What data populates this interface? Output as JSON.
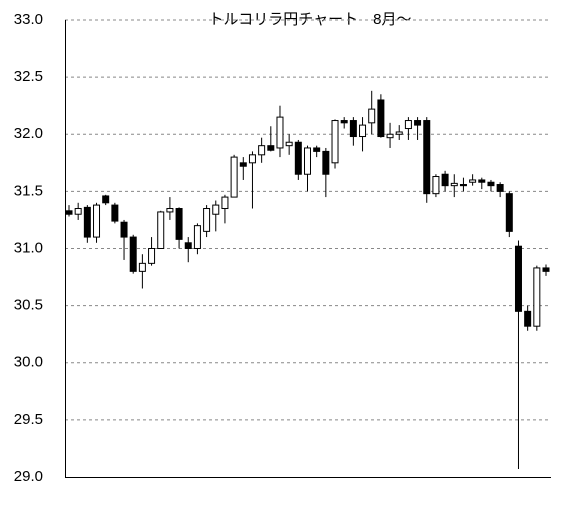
{
  "chart_data": {
    "type": "candlestick",
    "title": "トルコリラ円チャート　8月～",
    "open": [
      31.33,
      31.3,
      31.36,
      31.1,
      31.46,
      31.38,
      31.23,
      31.1,
      30.8,
      30.87,
      31.0,
      31.32,
      31.35,
      31.05,
      31.0,
      31.15,
      31.3,
      31.35,
      31.45,
      31.75,
      31.75,
      31.82,
      31.9,
      31.88,
      31.9,
      31.93,
      31.65,
      31.88,
      31.85,
      31.75,
      32.12,
      32.12,
      31.98,
      32.1,
      32.3,
      31.97,
      32.0,
      32.05,
      32.12,
      32.12,
      31.48,
      31.65,
      31.55,
      31.56,
      31.58,
      31.6,
      31.58,
      31.56,
      31.48,
      31.02,
      30.45,
      30.32,
      30.83
    ],
    "high": [
      31.38,
      31.4,
      31.38,
      31.4,
      31.47,
      31.4,
      31.25,
      31.12,
      30.95,
      31.1,
      31.33,
      31.45,
      31.36,
      31.1,
      31.22,
      31.38,
      31.42,
      31.47,
      31.82,
      31.8,
      31.85,
      31.97,
      32.07,
      32.25,
      32.0,
      31.95,
      31.9,
      31.9,
      31.88,
      32.13,
      32.15,
      32.15,
      32.15,
      32.38,
      32.35,
      32.1,
      32.08,
      32.15,
      32.15,
      32.15,
      31.65,
      31.68,
      31.65,
      31.62,
      31.65,
      31.62,
      31.6,
      31.58,
      31.5,
      31.07,
      30.5,
      30.85,
      30.86
    ],
    "low": [
      31.28,
      31.25,
      31.05,
      31.05,
      31.38,
      31.22,
      30.9,
      30.78,
      30.65,
      30.85,
      31.0,
      31.25,
      31.0,
      30.88,
      30.95,
      31.1,
      31.15,
      31.22,
      31.45,
      31.6,
      31.35,
      31.75,
      31.85,
      31.8,
      31.82,
      31.6,
      31.5,
      31.8,
      31.45,
      31.7,
      32.05,
      31.9,
      31.85,
      32.0,
      31.97,
      31.88,
      31.95,
      31.95,
      31.95,
      31.4,
      31.45,
      31.5,
      31.45,
      31.5,
      31.55,
      31.52,
      31.5,
      31.45,
      31.1,
      29.07,
      30.28,
      30.28,
      30.76
    ],
    "close": [
      31.3,
      31.35,
      31.1,
      31.38,
      31.4,
      31.24,
      31.1,
      30.8,
      30.87,
      31.0,
      31.32,
      31.35,
      31.08,
      31.0,
      31.2,
      31.35,
      31.38,
      31.45,
      31.8,
      31.72,
      31.82,
      31.9,
      31.86,
      32.15,
      31.93,
      31.65,
      31.88,
      31.85,
      31.65,
      32.12,
      32.1,
      31.98,
      32.08,
      32.22,
      31.98,
      32.0,
      32.02,
      32.12,
      32.08,
      31.48,
      31.63,
      31.55,
      31.57,
      31.55,
      31.6,
      31.58,
      31.55,
      31.5,
      31.15,
      30.45,
      30.32,
      30.83,
      30.8
    ],
    "ylim": [
      29.0,
      33.0
    ],
    "yticks": [
      {
        "value": 29.0,
        "label": "29.0"
      },
      29.5,
      {
        "value": 30.0,
        "label": "30.0"
      },
      30.5,
      {
        "value": 31.0,
        "label": "31.0"
      },
      31.5,
      {
        "value": 32.0,
        "label": "32.0"
      },
      32.5,
      {
        "value": 33.0,
        "label": "33.0"
      }
    ],
    "grid": true,
    "up_color": "#ffffff",
    "down_color": "#000000"
  }
}
